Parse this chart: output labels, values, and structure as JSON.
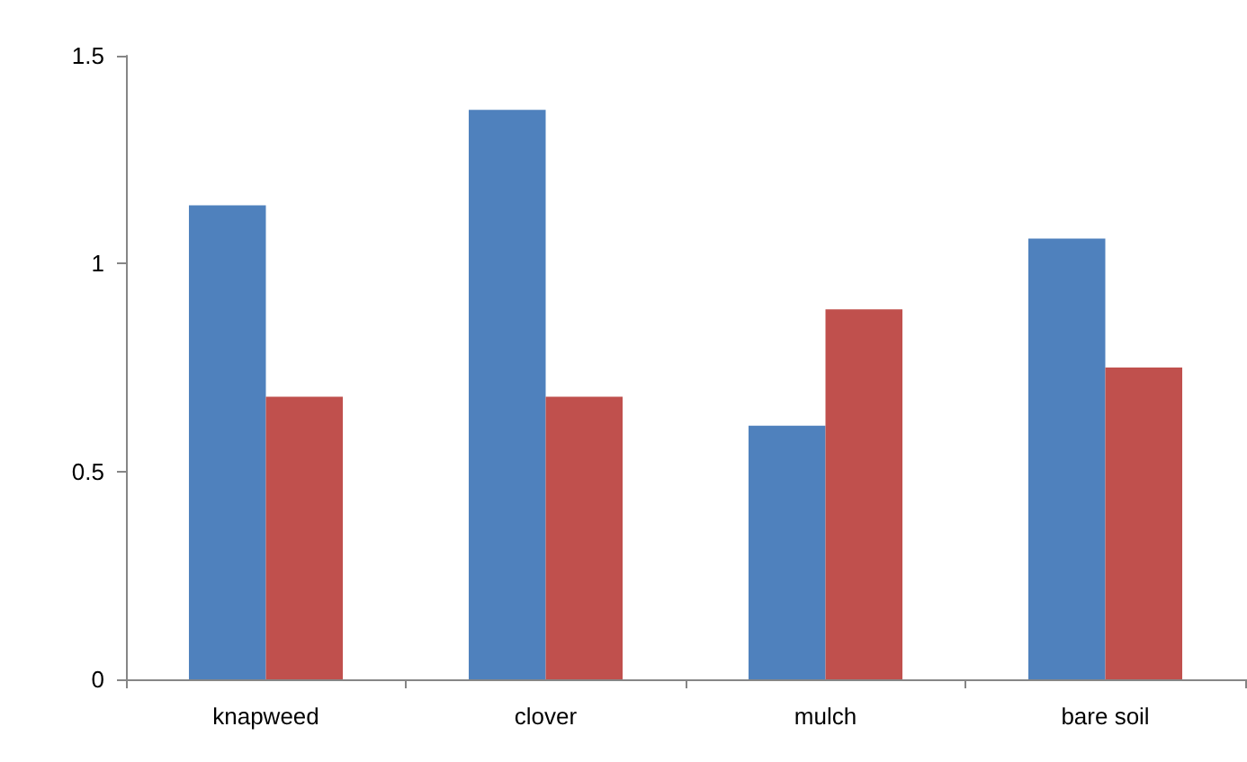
{
  "chart_data": {
    "type": "bar",
    "categories": [
      "knapweed",
      "clover",
      "mulch",
      "bare soil"
    ],
    "series": [
      {
        "color": "#4f81bd",
        "values": [
          1.14,
          1.37,
          0.61,
          1.06
        ]
      },
      {
        "color": "#c0504d",
        "values": [
          0.68,
          0.68,
          0.89,
          0.75
        ]
      }
    ],
    "ylim": [
      0,
      1.5
    ],
    "yticks": [
      0,
      0.5,
      1,
      1.5
    ]
  }
}
